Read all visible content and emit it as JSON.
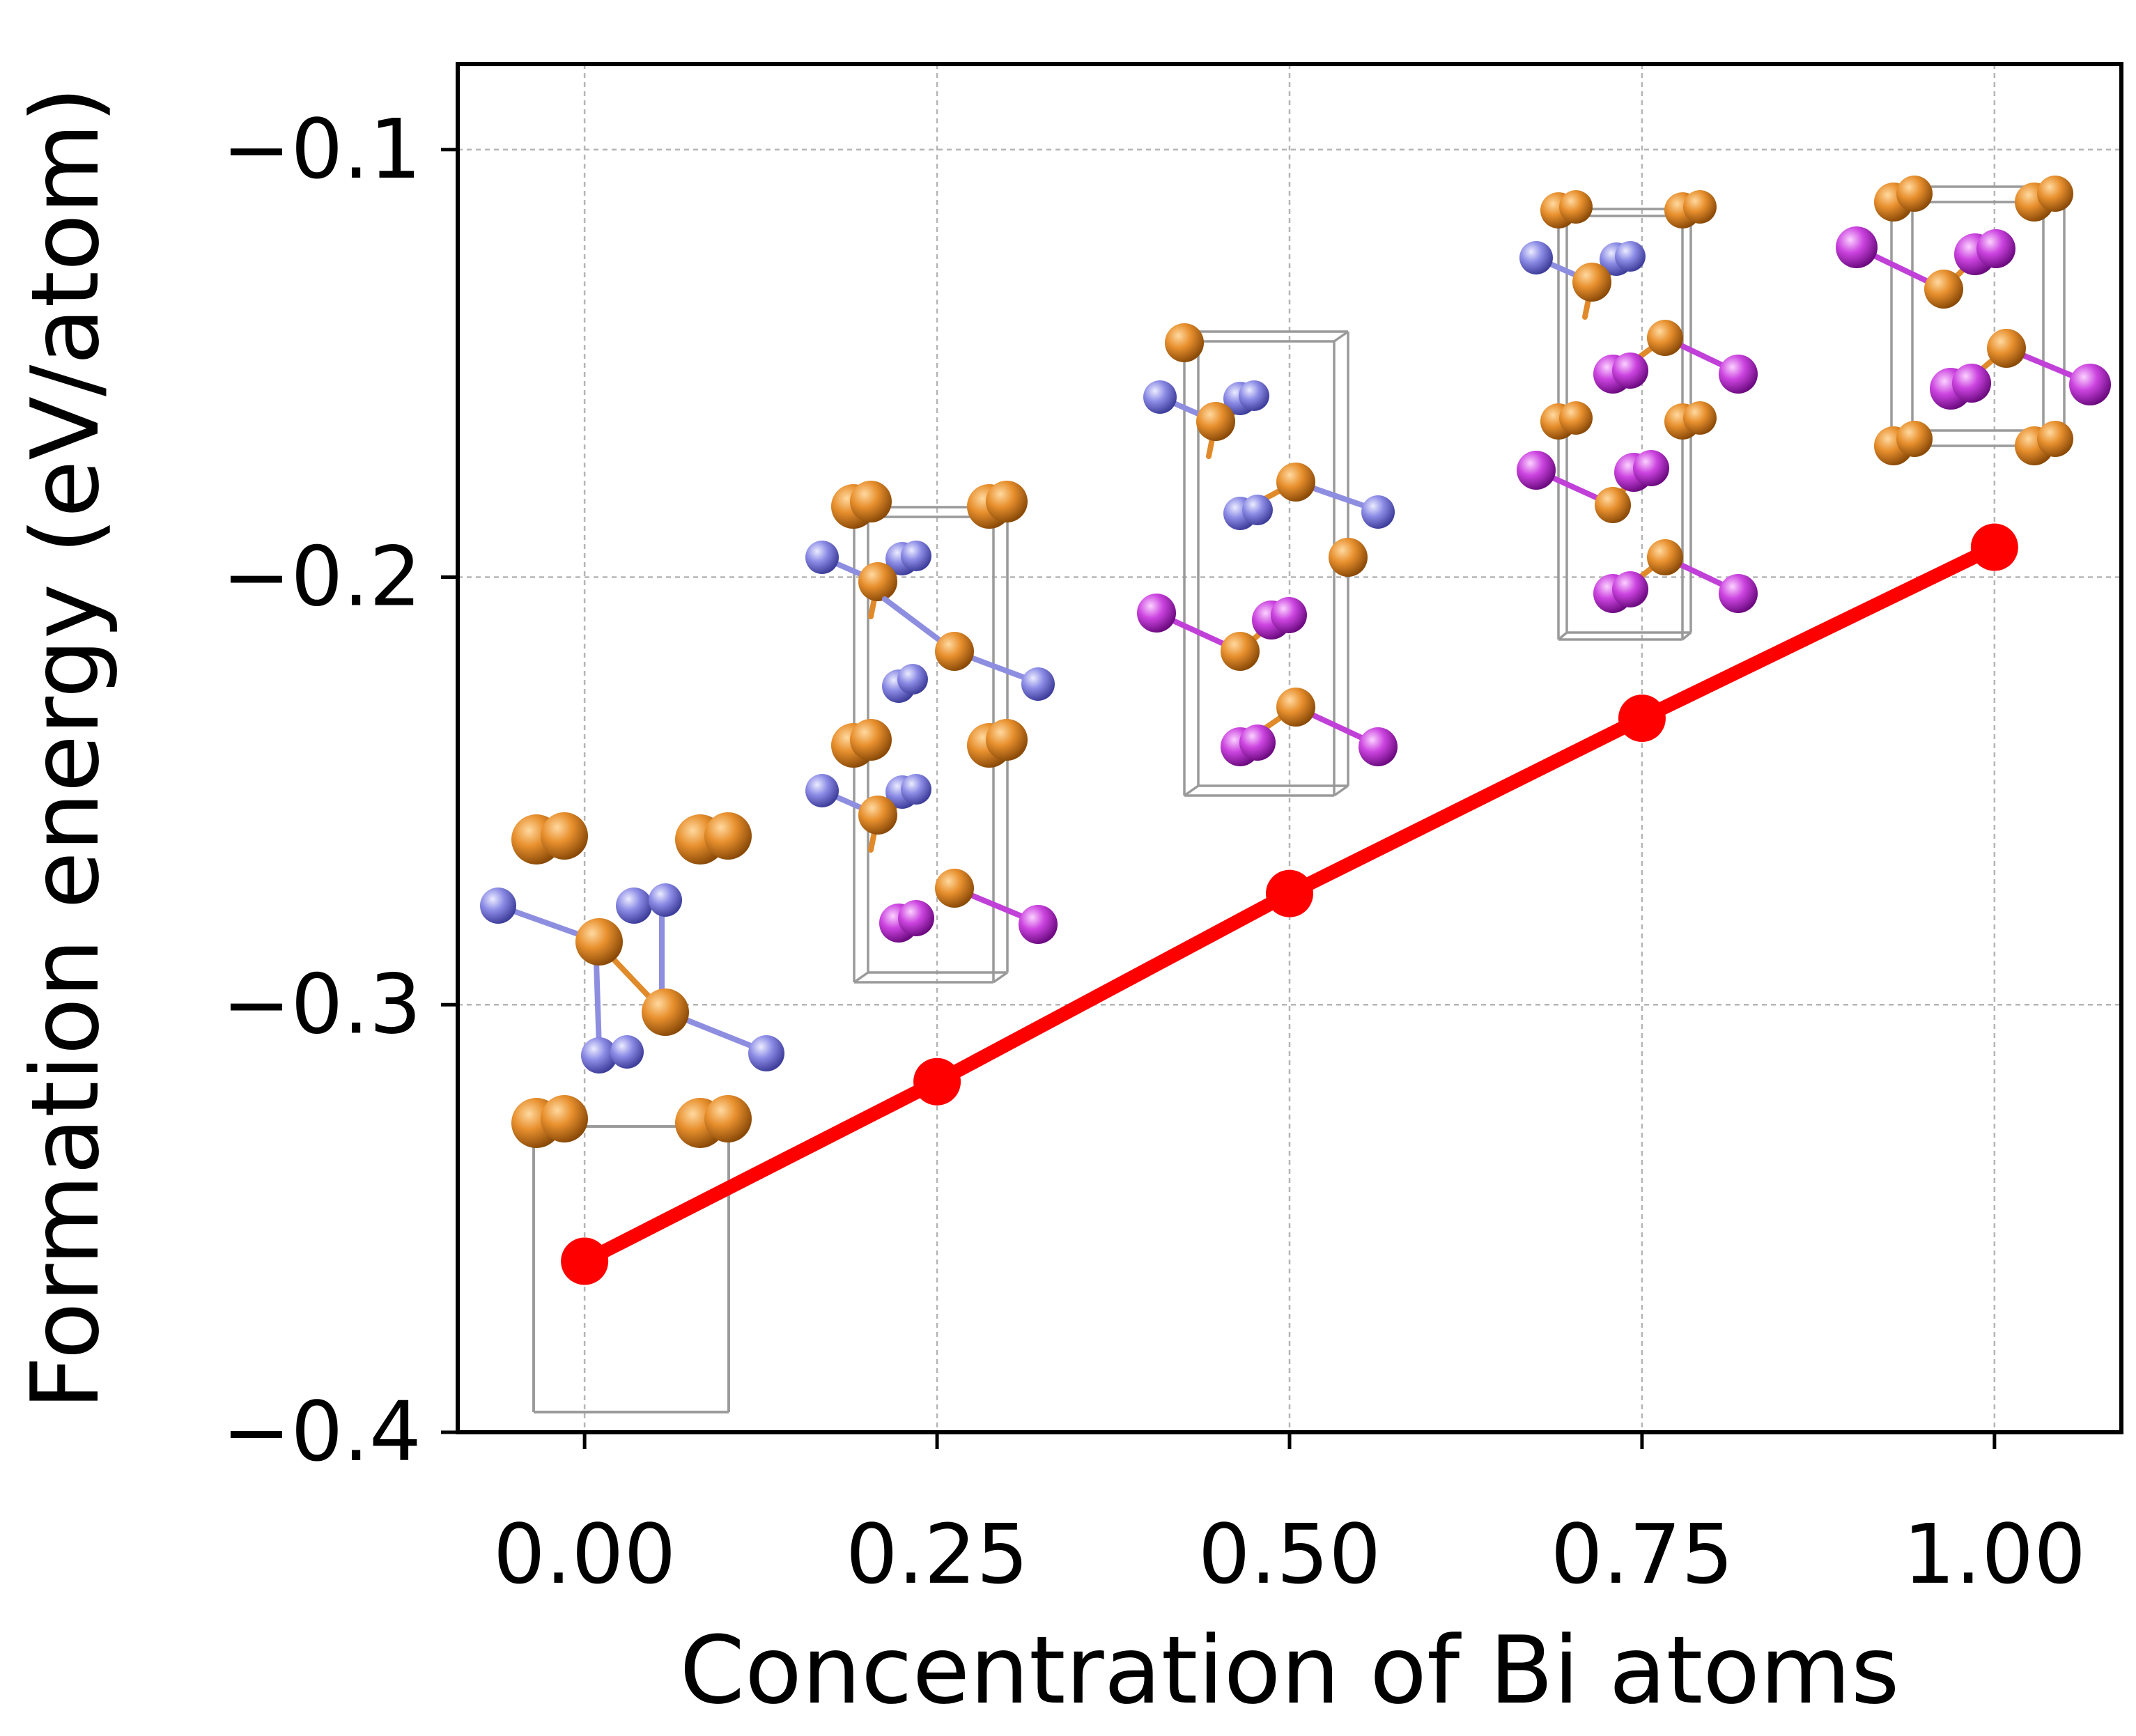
{
  "chart_data": {
    "type": "line",
    "title": "",
    "xlabel": "Concentration of Bi atoms",
    "ylabel": "Formation energy (eV/atom)",
    "x": [
      0.0,
      0.25,
      0.5,
      0.75,
      1.0
    ],
    "series": [
      {
        "name": "Formation energy",
        "color": "#ff0000",
        "values": [
          -0.36,
          -0.318,
          -0.274,
          -0.233,
          -0.193
        ]
      }
    ],
    "xlim": [
      -0.09,
      1.09
    ],
    "ylim": [
      -0.4,
      -0.08
    ],
    "xticks": [
      0.0,
      0.25,
      0.5,
      0.75,
      1.0
    ],
    "xtick_labels": [
      "0.00",
      "0.25",
      "0.50",
      "0.75",
      "1.00"
    ],
    "yticks": [
      -0.1,
      -0.2,
      -0.3,
      -0.4
    ],
    "ytick_labels": [
      "−0.1",
      "−0.2",
      "−0.3",
      "−0.4"
    ],
    "grid": true,
    "insets": [
      {
        "name": "structure-x0.00",
        "description": "crystal structure inset"
      },
      {
        "name": "structure-x0.25",
        "description": "crystal structure inset"
      },
      {
        "name": "structure-x0.50",
        "description": "crystal structure inset"
      },
      {
        "name": "structure-x0.75",
        "description": "crystal structure inset"
      },
      {
        "name": "structure-x1.00",
        "description": "crystal structure inset"
      }
    ],
    "atom_colors": {
      "host": "#d97a1e",
      "substituted": "#7b7bd8",
      "bi": "#c02ed6"
    }
  }
}
